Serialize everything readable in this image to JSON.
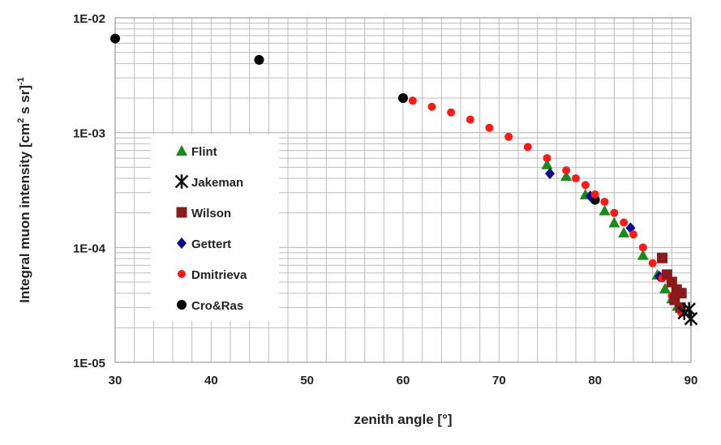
{
  "chart_data": {
    "type": "scatter",
    "xlabel": "zenith angle [°]",
    "ylabel": "Integral muon intensity [cm",
    "ylabel_sup2": "2",
    "ylabel_mid": " s sr]",
    "ylabel_sup_exp": "-1",
    "xlim": [
      30,
      90
    ],
    "ylim": [
      1e-05,
      0.01
    ],
    "y_scale": "log",
    "grid": true,
    "legend_placement": "center-left",
    "x_ticks": [
      "30",
      "40",
      "50",
      "60",
      "70",
      "80",
      "90"
    ],
    "y_ticks": [
      "1E-05",
      "1E-04",
      "1E-03",
      "1E-02"
    ],
    "series": [
      {
        "name": "Flint",
        "marker": "triangle",
        "color": "#1a8a1a",
        "points": [
          [
            75,
            0.00053
          ],
          [
            77,
            0.00042
          ],
          [
            79,
            0.00029
          ],
          [
            81,
            0.00021
          ],
          [
            82,
            0.000165
          ],
          [
            83,
            0.000135
          ],
          [
            85,
            8.6e-05
          ],
          [
            86.5,
            5.8e-05
          ],
          [
            87.3,
            4.4e-05
          ],
          [
            88,
            3.6e-05
          ],
          [
            88.6,
            3.1e-05
          ]
        ]
      },
      {
        "name": "Jakeman",
        "marker": "star",
        "color": "#111111",
        "points": [
          [
            89.3,
            2.7e-05
          ],
          [
            89.8,
            2.9e-05
          ],
          [
            90,
            2.4e-05
          ]
        ]
      },
      {
        "name": "Wilson",
        "marker": "square",
        "color": "#8b1a1a",
        "points": [
          [
            87,
            8.1e-05
          ],
          [
            87.5,
            5.8e-05
          ],
          [
            88,
            5e-05
          ],
          [
            88.5,
            4.3e-05
          ],
          [
            89,
            4e-05
          ],
          [
            88.3,
            3.5e-05
          ],
          [
            88.9,
            3e-05
          ]
        ]
      },
      {
        "name": "Gettert",
        "marker": "diamond",
        "color": "#0a0a8c",
        "points": [
          [
            75.3,
            0.00044
          ],
          [
            79.5,
            0.00028
          ],
          [
            83.7,
            0.000148
          ],
          [
            86.7,
            5.6e-05
          ]
        ]
      },
      {
        "name": "Dmitrieva",
        "marker": "circle-small",
        "color": "#ff1a1a",
        "points": [
          [
            61,
            0.0019
          ],
          [
            63,
            0.00168
          ],
          [
            65,
            0.0015
          ],
          [
            67,
            0.0013
          ],
          [
            69,
            0.0011
          ],
          [
            71,
            0.00092
          ],
          [
            73,
            0.00075
          ],
          [
            75,
            0.0006
          ],
          [
            77,
            0.00047
          ],
          [
            78,
            0.0004
          ],
          [
            79,
            0.00035
          ],
          [
            80,
            0.00029
          ],
          [
            81,
            0.00025
          ],
          [
            82,
            0.0002
          ],
          [
            83,
            0.000165
          ],
          [
            84,
            0.00013
          ],
          [
            85,
            0.0001
          ],
          [
            86,
            7.3e-05
          ],
          [
            87,
            5.4e-05
          ],
          [
            88,
            3.8e-05
          ],
          [
            89,
            2.7e-05
          ]
        ]
      },
      {
        "name": "Cro&Ras",
        "marker": "circle",
        "color": "#000000",
        "points": [
          [
            30,
            0.0066
          ],
          [
            45,
            0.0043
          ],
          [
            60,
            0.002
          ],
          [
            80,
            0.00026
          ]
        ]
      }
    ]
  }
}
